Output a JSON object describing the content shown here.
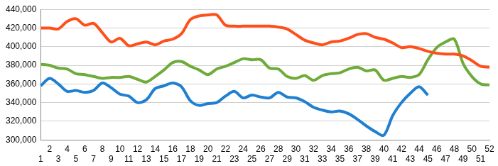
{
  "chart_data": {
    "type": "line",
    "categories": [
      1,
      2,
      3,
      4,
      5,
      6,
      7,
      8,
      9,
      10,
      11,
      12,
      13,
      14,
      15,
      16,
      17,
      18,
      19,
      20,
      21,
      22,
      23,
      24,
      25,
      26,
      27,
      28,
      29,
      30,
      31,
      32,
      33,
      34,
      35,
      36,
      37,
      38,
      39,
      40,
      41,
      42,
      43,
      44,
      45,
      46,
      47,
      48,
      49,
      50,
      51,
      52
    ],
    "series": [
      {
        "color": "#ff4f1a",
        "values": [
          420000,
          420000,
          419000,
          427000,
          430000,
          423000,
          425000,
          415000,
          405000,
          409000,
          401000,
          403000,
          405000,
          402000,
          406000,
          408000,
          414000,
          429000,
          433000,
          434000,
          434000,
          423000,
          422000,
          422000,
          422000,
          422000,
          422000,
          421000,
          419000,
          413000,
          407000,
          404000,
          402000,
          405000,
          406000,
          409000,
          413000,
          414000,
          410000,
          408000,
          404000,
          399000,
          400000,
          398000,
          395000,
          393000,
          392000,
          392000,
          390000,
          385000,
          379000,
          378000
        ]
      },
      {
        "color": "#6eab3a",
        "values": [
          381000,
          380000,
          377000,
          376000,
          371000,
          370000,
          368000,
          366000,
          367000,
          367000,
          368000,
          365000,
          362000,
          368000,
          375000,
          383000,
          384000,
          379000,
          375000,
          370000,
          376000,
          379000,
          383000,
          387000,
          386000,
          386000,
          377000,
          376000,
          368000,
          366000,
          369000,
          364000,
          369000,
          371000,
          372000,
          376000,
          378000,
          374000,
          375000,
          364000,
          366000,
          368000,
          367000,
          370000,
          386000,
          399000,
          405000,
          408000,
          382000,
          368000,
          360000,
          359000
        ]
      },
      {
        "color": "#1f7fd0",
        "values": [
          358000,
          366000,
          360000,
          352000,
          353000,
          351000,
          353000,
          361000,
          356000,
          349000,
          347000,
          340000,
          343000,
          355000,
          358000,
          361000,
          357000,
          342000,
          337000,
          339000,
          340000,
          347000,
          352000,
          345000,
          348000,
          346000,
          345000,
          351000,
          346000,
          345000,
          341000,
          335000,
          332000,
          330000,
          331000,
          328000,
          322000,
          315000,
          309000,
          305000,
          326000,
          340000,
          350000,
          357000,
          348000,
          null,
          null,
          null,
          null,
          null,
          null,
          null
        ]
      }
    ],
    "ylim": [
      300000,
      440000
    ],
    "yticks": [
      {
        "value": 300000,
        "label": "300,000"
      },
      {
        "value": 320000,
        "label": "320,000"
      },
      {
        "value": 340000,
        "label": "340,000"
      },
      {
        "value": 360000,
        "label": "360,000"
      },
      {
        "value": 380000,
        "label": "380,000"
      },
      {
        "value": 400000,
        "label": "400,000"
      },
      {
        "value": 420000,
        "label": "420,000"
      },
      {
        "value": 440000,
        "label": "440,000"
      }
    ],
    "grid": true
  }
}
